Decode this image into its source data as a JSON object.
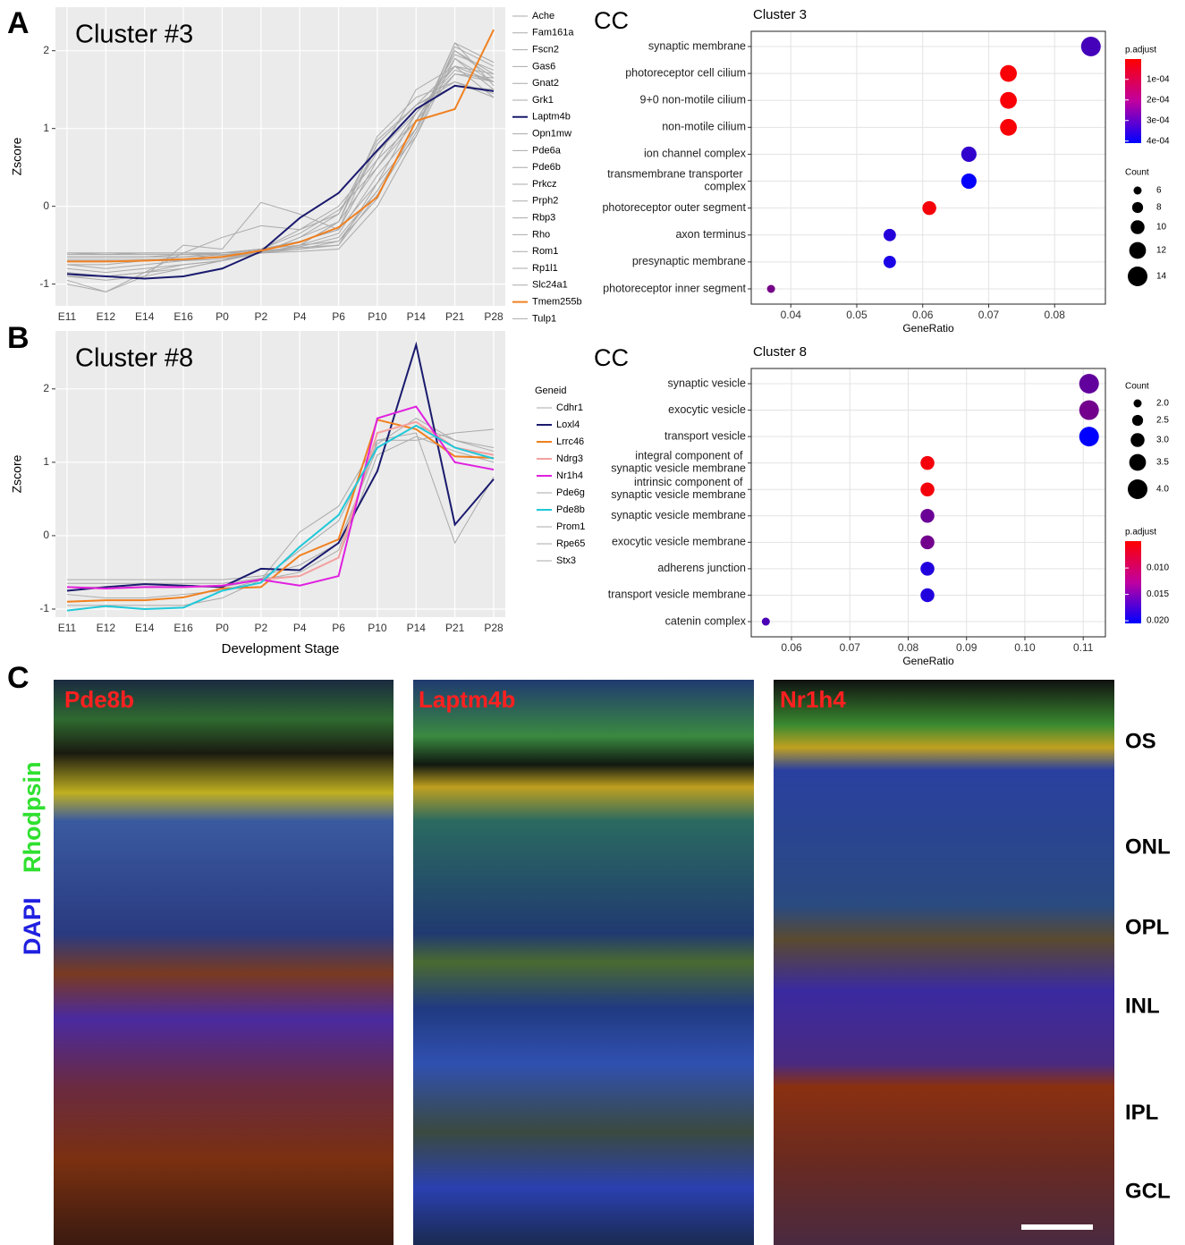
{
  "chart_data": [
    {
      "type": "line",
      "panel": "A",
      "title": "Cluster #3",
      "y_label": "Zscore",
      "categories": [
        "E11",
        "E12",
        "E14",
        "E16",
        "P0",
        "P2",
        "P4",
        "P6",
        "P10",
        "P14",
        "P21",
        "P28"
      ],
      "ylim": [
        -1.28,
        2.56
      ],
      "yticks": [
        -1,
        0,
        1,
        2
      ],
      "grid": true,
      "series": [
        {
          "name": "Ache",
          "color": "#aaaaaa",
          "values": [
            -0.65,
            -0.65,
            -0.65,
            -0.62,
            -0.6,
            -0.55,
            -0.45,
            -0.3,
            0.3,
            1.2,
            1.8,
            1.6
          ]
        },
        {
          "name": "Fam161a",
          "color": "#aaaaaa",
          "values": [
            -0.8,
            -0.85,
            -0.8,
            -0.75,
            -0.7,
            -0.6,
            -0.4,
            -0.2,
            0.5,
            1.1,
            1.9,
            1.5
          ]
        },
        {
          "name": "Fscn2",
          "color": "#aaaaaa",
          "values": [
            -0.6,
            -0.6,
            -0.6,
            -0.6,
            -0.6,
            -0.55,
            -0.5,
            -0.45,
            0.2,
            1.0,
            2.0,
            1.7
          ]
        },
        {
          "name": "Gas6",
          "color": "#aaaaaa",
          "values": [
            -0.9,
            -0.95,
            -0.9,
            -0.5,
            -0.55,
            0.05,
            -0.1,
            -0.3,
            0.8,
            1.3,
            1.6,
            1.45
          ]
        },
        {
          "name": "Gnat2",
          "color": "#aaaaaa",
          "values": [
            -0.7,
            -0.7,
            -0.7,
            -0.7,
            -0.65,
            -0.6,
            -0.55,
            -0.5,
            0.3,
            0.9,
            1.9,
            1.6
          ]
        },
        {
          "name": "Grk1",
          "color": "#aaaaaa",
          "values": [
            -0.75,
            -0.8,
            -0.75,
            -0.7,
            -0.6,
            -0.55,
            -0.3,
            0.0,
            0.6,
            1.1,
            1.7,
            1.65
          ]
        },
        {
          "name": "Laptm4b",
          "color": "#1a1a6e",
          "values": [
            -0.87,
            -0.9,
            -0.93,
            -0.9,
            -0.8,
            -0.58,
            -0.15,
            0.17,
            0.72,
            1.25,
            1.55,
            1.48
          ]
        },
        {
          "name": "Opn1mw",
          "color": "#aaaaaa",
          "values": [
            -0.95,
            -1.1,
            -0.85,
            -0.6,
            -0.4,
            -0.25,
            -0.3,
            -0.1,
            0.7,
            1.2,
            1.7,
            1.6
          ]
        },
        {
          "name": "Pde6a",
          "color": "#aaaaaa",
          "values": [
            -0.6,
            -0.6,
            -0.6,
            -0.6,
            -0.6,
            -0.6,
            -0.5,
            -0.2,
            0.8,
            1.3,
            1.8,
            1.7
          ]
        },
        {
          "name": "Pde6b",
          "color": "#aaaaaa",
          "values": [
            -0.7,
            -0.7,
            -0.7,
            -0.7,
            -0.68,
            -0.6,
            -0.5,
            -0.35,
            0.4,
            1.0,
            2.1,
            1.55
          ]
        },
        {
          "name": "Prkcz",
          "color": "#aaaaaa",
          "values": [
            -1.0,
            -1.1,
            -0.9,
            -0.8,
            -0.7,
            -0.6,
            -0.5,
            -0.2,
            0.9,
            1.4,
            1.6,
            1.4
          ]
        },
        {
          "name": "Prph2",
          "color": "#aaaaaa",
          "values": [
            -0.65,
            -0.65,
            -0.65,
            -0.65,
            -0.63,
            -0.58,
            -0.55,
            -0.45,
            0.1,
            1.1,
            1.95,
            1.75
          ]
        },
        {
          "name": "Rbp3",
          "color": "#aaaaaa",
          "values": [
            -0.75,
            -0.75,
            -0.7,
            -0.65,
            -0.6,
            -0.55,
            -0.45,
            -0.3,
            0.6,
            1.5,
            1.8,
            1.4
          ]
        },
        {
          "name": "Rho",
          "color": "#aaaaaa",
          "values": [
            -0.62,
            -0.62,
            -0.62,
            -0.62,
            -0.62,
            -0.6,
            -0.58,
            -0.55,
            0.0,
            0.9,
            2.05,
            1.8
          ]
        },
        {
          "name": "Rom1",
          "color": "#aaaaaa",
          "values": [
            -0.68,
            -0.68,
            -0.68,
            -0.68,
            -0.66,
            -0.6,
            -0.52,
            -0.4,
            0.2,
            1.0,
            2.0,
            1.65
          ]
        },
        {
          "name": "Rp1l1",
          "color": "#aaaaaa",
          "values": [
            -0.6,
            -0.62,
            -0.6,
            -0.6,
            -0.6,
            -0.57,
            -0.53,
            -0.5,
            0.15,
            0.95,
            2.1,
            1.85
          ]
        },
        {
          "name": "Slc24a1",
          "color": "#aaaaaa",
          "values": [
            -0.85,
            -0.9,
            -0.85,
            -0.8,
            -0.7,
            -0.6,
            -0.4,
            -0.1,
            0.85,
            1.3,
            1.55,
            1.5
          ]
        },
        {
          "name": "Tmem255b",
          "color": "#f08020",
          "values": [
            -0.71,
            -0.71,
            -0.7,
            -0.68,
            -0.65,
            -0.57,
            -0.46,
            -0.27,
            0.12,
            1.1,
            1.25,
            2.27
          ]
        },
        {
          "name": "Tulp1",
          "color": "#aaaaaa",
          "values": [
            -0.9,
            -0.9,
            -0.85,
            -0.75,
            -0.7,
            -0.55,
            -0.35,
            -0.05,
            0.5,
            1.2,
            1.75,
            1.6
          ]
        }
      ]
    },
    {
      "type": "dot",
      "ontology": "CC",
      "title": "Cluster  3",
      "x_label": "GeneRatio",
      "categories": [
        "synaptic membrane",
        "photoreceptor cell cilium",
        "9+0 non-motile cilium",
        "non-motile cilium",
        "ion channel complex",
        "transmembrane transporter\ncomplex",
        "photoreceptor outer segment",
        "axon terminus",
        "presynaptic membrane",
        "photoreceptor inner segment"
      ],
      "values": [
        0.0855,
        0.073,
        0.073,
        0.073,
        0.067,
        0.067,
        0.061,
        0.055,
        0.055,
        0.037
      ],
      "count": [
        14,
        12,
        12,
        12,
        11,
        11,
        10,
        9,
        9,
        6
      ],
      "p_adjust": [
        0.0003,
        1e-05,
        1e-05,
        1e-05,
        0.00033,
        0.000405,
        1.5e-05,
        0.00035,
        0.00037,
        0.00022
      ],
      "xlim": [
        0.034,
        0.0877
      ],
      "xticks": [
        0.04,
        0.05,
        0.06,
        0.07,
        0.08
      ],
      "color_title": "p.adjust",
      "color_lim": [
        1e-06,
        0.00041
      ],
      "colors": [
        "#ff0000",
        "#0000ff"
      ],
      "color_ticks": [
        {
          "value": 0.0001,
          "label": "1e-04"
        },
        {
          "value": 0.0002,
          "label": "2e-04"
        },
        {
          "value": 0.0003,
          "label": "3e-04"
        },
        {
          "value": 0.0004,
          "label": "4e-04"
        }
      ],
      "size_title": "Count",
      "size_ticks": [
        6,
        8,
        10,
        12,
        14
      ],
      "grid": true
    },
    {
      "type": "line",
      "panel": "B",
      "title": "Cluster #8",
      "y_label": "Zscore",
      "x_label": "Development Stage",
      "legend_title": "Geneid",
      "categories": [
        "E11",
        "E12",
        "E14",
        "E16",
        "P0",
        "P2",
        "P4",
        "P6",
        "P10",
        "P14",
        "P21",
        "P28"
      ],
      "ylim": [
        -1.11,
        2.79
      ],
      "yticks": [
        -1,
        0,
        1,
        2
      ],
      "grid": true,
      "series": [
        {
          "name": "Cdhr1",
          "color": "#aaaaaa",
          "values": [
            -0.6,
            -0.6,
            -0.6,
            -0.6,
            -0.6,
            -0.55,
            -0.4,
            -0.1,
            1.2,
            1.5,
            1.3,
            1.2
          ]
        },
        {
          "name": "Loxl4",
          "color": "#1a1a6e",
          "values": [
            -0.75,
            -0.7,
            -0.66,
            -0.68,
            -0.7,
            -0.45,
            -0.47,
            -0.1,
            0.88,
            2.6,
            0.15,
            0.77
          ]
        },
        {
          "name": "Lrrc46",
          "color": "#f08020",
          "values": [
            -0.9,
            -0.88,
            -0.88,
            -0.84,
            -0.72,
            -0.7,
            -0.27,
            -0.05,
            1.58,
            1.45,
            1.08,
            1.06
          ]
        },
        {
          "name": "Ndrg3",
          "color": "#f4a0a0",
          "values": [
            -0.7,
            -0.72,
            -0.7,
            -0.7,
            -0.68,
            -0.6,
            -0.55,
            -0.3,
            1.4,
            1.55,
            1.2,
            1.1
          ]
        },
        {
          "name": "Nr1h4",
          "color": "#e020e0",
          "values": [
            -0.7,
            -0.72,
            -0.7,
            -0.7,
            -0.68,
            -0.6,
            -0.68,
            -0.55,
            1.6,
            1.76,
            1.0,
            0.9
          ]
        },
        {
          "name": "Pde6g",
          "color": "#aaaaaa",
          "values": [
            -0.8,
            -0.85,
            -0.85,
            -0.8,
            -0.75,
            -0.6,
            0.05,
            0.4,
            1.3,
            1.4,
            -0.1,
            0.8
          ]
        },
        {
          "name": "Pde8b",
          "color": "#20c8d8",
          "values": [
            -1.02,
            -0.96,
            -1.0,
            -0.98,
            -0.75,
            -0.64,
            -0.15,
            0.28,
            1.2,
            1.5,
            1.2,
            1.05
          ]
        },
        {
          "name": "Prom1",
          "color": "#aaaaaa",
          "values": [
            -0.95,
            -0.95,
            -0.95,
            -0.95,
            -0.85,
            -0.6,
            -0.2,
            0.2,
            1.25,
            1.6,
            1.3,
            1.15
          ]
        },
        {
          "name": "Rpe65",
          "color": "#aaaaaa",
          "values": [
            -0.7,
            -0.7,
            -0.7,
            -0.7,
            -0.7,
            -0.6,
            -0.5,
            -0.2,
            1.3,
            1.3,
            1.4,
            1.45
          ]
        },
        {
          "name": "Stx3",
          "color": "#aaaaaa",
          "values": [
            -0.65,
            -0.65,
            -0.65,
            -0.65,
            -0.65,
            -0.58,
            -0.55,
            -0.3,
            1.1,
            1.35,
            1.15,
            1.0
          ]
        }
      ]
    },
    {
      "type": "dot",
      "ontology": "CC",
      "title": "Cluster  8",
      "x_label": "GeneRatio",
      "categories": [
        "synaptic vesicle",
        "exocytic vesicle",
        "transport vesicle",
        "integral component of\nsynaptic vesicle membrane",
        "intrinsic component of\nsynaptic vesicle membrane",
        "synaptic vesicle membrane",
        "exocytic vesicle membrane",
        "adherens junction",
        "transport vesicle membrane",
        "catenin complex"
      ],
      "values": [
        0.111,
        0.111,
        0.111,
        0.0833,
        0.0833,
        0.0833,
        0.0833,
        0.0833,
        0.0833,
        0.0556
      ],
      "count": [
        4,
        4,
        4,
        3,
        3,
        3,
        3,
        3,
        3,
        2
      ],
      "p_adjust": [
        0.0145,
        0.0135,
        0.0205,
        0.0055,
        0.0055,
        0.014,
        0.0135,
        0.0185,
        0.0185,
        0.016
      ],
      "xlim": [
        0.0531,
        0.1138
      ],
      "xticks": [
        0.06,
        0.07,
        0.08,
        0.09,
        {
          "value": 0.1,
          "label": "0.10"
        },
        0.11
      ],
      "color_title": "p.adjust",
      "color_lim": [
        0.0049,
        0.0205
      ],
      "colors": [
        "#ff0000",
        "#0000ff"
      ],
      "color_ticks": [
        {
          "value": 0.01,
          "label": "0.010"
        },
        0.015,
        {
          "value": 0.02,
          "label": "0.020"
        }
      ],
      "size_title": "Count",
      "size_ticks": [
        {
          "value": 2,
          "label": "2.0"
        },
        2.5,
        {
          "value": 3,
          "label": "3.0"
        },
        3.5,
        {
          "value": 4,
          "label": "4.0"
        }
      ],
      "grid": true
    }
  ],
  "micrographs": {
    "panel": "C",
    "stains": [
      "DAPI",
      "Rhodpsin"
    ],
    "images": [
      "Pde8b",
      "Laptm4b",
      "Nr1h4"
    ],
    "layers": [
      "OS",
      "ONL",
      "OPL",
      "INL",
      "IPL",
      "GCL"
    ]
  }
}
